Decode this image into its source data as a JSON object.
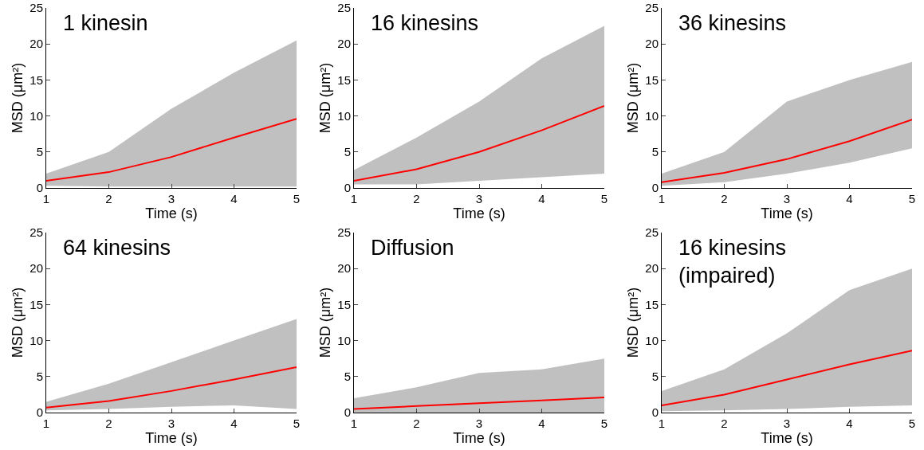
{
  "chart_data": [
    {
      "type": "line",
      "title": "1 kinesin",
      "xlabel": "Time (s)",
      "ylabel": "MSD (μm²)",
      "x": [
        1,
        2,
        3,
        4,
        5
      ],
      "xlim": [
        1,
        5
      ],
      "xticks": [
        1,
        2,
        3,
        4,
        5
      ],
      "ylim": [
        0,
        25
      ],
      "yticks": [
        0,
        5,
        10,
        15,
        20,
        25
      ],
      "grid": false,
      "series": [
        {
          "color": "#ff0000",
          "values": [
            1,
            2.2,
            4.3,
            7,
            9.6
          ],
          "lower": [
            0.3,
            0.2,
            0.2,
            0.2,
            0.2
          ],
          "upper": [
            2,
            5,
            11,
            16,
            20.5
          ]
        }
      ]
    },
    {
      "type": "line",
      "title": "16 kinesins",
      "xlabel": "Time (s)",
      "ylabel": "MSD (μm²)",
      "x": [
        1,
        2,
        3,
        4,
        5
      ],
      "xlim": [
        1,
        5
      ],
      "xticks": [
        1,
        2,
        3,
        4,
        5
      ],
      "ylim": [
        0,
        25
      ],
      "yticks": [
        0,
        5,
        10,
        15,
        20,
        25
      ],
      "grid": false,
      "series": [
        {
          "color": "#ff0000",
          "values": [
            1,
            2.6,
            5,
            8,
            11.4
          ],
          "lower": [
            0.5,
            0.5,
            1,
            1.5,
            2
          ],
          "upper": [
            2.5,
            7,
            12,
            18,
            22.5
          ]
        }
      ]
    },
    {
      "type": "line",
      "title": "36 kinesins",
      "xlabel": "Time (s)",
      "ylabel": "MSD (μm²)",
      "x": [
        1,
        2,
        3,
        4,
        5
      ],
      "xlim": [
        1,
        5
      ],
      "xticks": [
        1,
        2,
        3,
        4,
        5
      ],
      "ylim": [
        0,
        25
      ],
      "yticks": [
        0,
        5,
        10,
        15,
        20,
        25
      ],
      "grid": false,
      "series": [
        {
          "color": "#ff0000",
          "values": [
            0.8,
            2.1,
            4,
            6.5,
            9.5
          ],
          "lower": [
            0.3,
            0.8,
            2,
            3.5,
            5.5
          ],
          "upper": [
            2,
            5,
            12,
            15,
            17.5
          ]
        }
      ]
    },
    {
      "type": "line",
      "title": "64 kinesins",
      "xlabel": "Time (s)",
      "ylabel": "MSD (μm²)",
      "x": [
        1,
        2,
        3,
        4,
        5
      ],
      "xlim": [
        1,
        5
      ],
      "xticks": [
        1,
        2,
        3,
        4,
        5
      ],
      "ylim": [
        0,
        25
      ],
      "yticks": [
        0,
        5,
        10,
        15,
        20,
        25
      ],
      "grid": false,
      "series": [
        {
          "color": "#ff0000",
          "values": [
            0.7,
            1.6,
            3,
            4.6,
            6.3
          ],
          "lower": [
            0.3,
            0.5,
            0.8,
            1,
            0.5
          ],
          "upper": [
            1.5,
            4,
            7,
            10,
            13
          ]
        }
      ]
    },
    {
      "type": "line",
      "title": "Diffusion",
      "xlabel": "Time (s)",
      "ylabel": "MSD (μm²)",
      "x": [
        1,
        2,
        3,
        4,
        5
      ],
      "xlim": [
        1,
        5
      ],
      "xticks": [
        1,
        2,
        3,
        4,
        5
      ],
      "ylim": [
        0,
        25
      ],
      "yticks": [
        0,
        5,
        10,
        15,
        20,
        25
      ],
      "grid": false,
      "series": [
        {
          "color": "#ff0000",
          "values": [
            0.5,
            0.9,
            1.3,
            1.7,
            2.1
          ],
          "lower": [
            0,
            0,
            0,
            0,
            0
          ],
          "upper": [
            2,
            3.5,
            5.5,
            6,
            7.5
          ]
        }
      ]
    },
    {
      "type": "line",
      "title": "16 kinesins\n(impaired)",
      "xlabel": "Time (s)",
      "ylabel": "MSD (μm²)",
      "x": [
        1,
        2,
        3,
        4,
        5
      ],
      "xlim": [
        1,
        5
      ],
      "xticks": [
        1,
        2,
        3,
        4,
        5
      ],
      "ylim": [
        0,
        25
      ],
      "yticks": [
        0,
        5,
        10,
        15,
        20,
        25
      ],
      "grid": false,
      "series": [
        {
          "color": "#ff0000",
          "values": [
            1,
            2.5,
            4.6,
            6.7,
            8.6
          ],
          "lower": [
            0.2,
            0.3,
            0.5,
            0.8,
            1
          ],
          "upper": [
            3,
            6,
            11,
            17,
            20
          ]
        }
      ]
    }
  ]
}
